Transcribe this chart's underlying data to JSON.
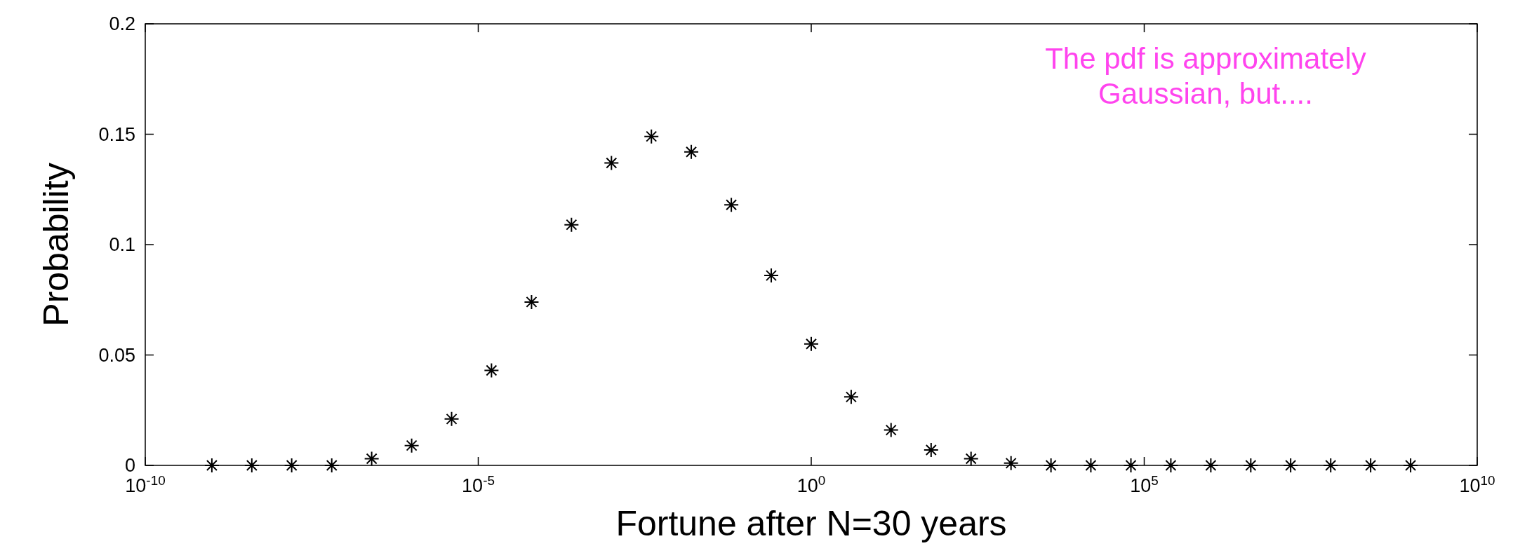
{
  "chart_data": {
    "type": "scatter",
    "xlabel": "Fortune after N=30 years",
    "ylabel": "Probability",
    "x": [
      1e-09,
      3.98e-09,
      1.58e-08,
      6.31e-08,
      2.51e-07,
      1e-06,
      3.98e-06,
      1.58e-05,
      6.31e-05,
      0.000251,
      0.001,
      0.00398,
      0.0158,
      0.0631,
      0.251,
      1,
      3.98,
      15.8,
      63.1,
      251,
      1000,
      3980,
      15800,
      63100,
      251000,
      1000000.0,
      3980000.0,
      15800000.0,
      63100000.0,
      251000000.0,
      1000000000.0
    ],
    "series": [
      {
        "color": "#000000",
        "values": [
          0,
          0,
          0,
          0,
          0.003,
          0.009,
          0.021,
          0.043,
          0.074,
          0.109,
          0.137,
          0.149,
          0.142,
          0.118,
          0.086,
          0.055,
          0.031,
          0.016,
          0.007,
          0.003,
          0.001,
          0,
          0,
          0,
          0,
          0,
          0,
          0,
          0,
          0,
          0
        ]
      }
    ],
    "marker": "cross",
    "log": "x",
    "grid": false,
    "xlim": [
      1e-10,
      10000000000.0
    ],
    "xticks": [
      {
        "value": 1e-10,
        "label": "10$^{-10}$"
      },
      {
        "value": 1e-05,
        "label": "10$^{-5}$"
      },
      {
        "value": 1,
        "label": "10$^{0}$"
      },
      {
        "value": 100000.0,
        "label": "10$^{5}$"
      },
      {
        "value": 10000000000.0,
        "label": "10$^{10}$"
      }
    ],
    "ylim": [
      0,
      0.2
    ],
    "yticks": [
      0,
      0.05,
      0.1,
      0.15,
      0.2
    ],
    "annotations": [
      "The pdf is approximately\nGaussian, but...."
    ]
  }
}
